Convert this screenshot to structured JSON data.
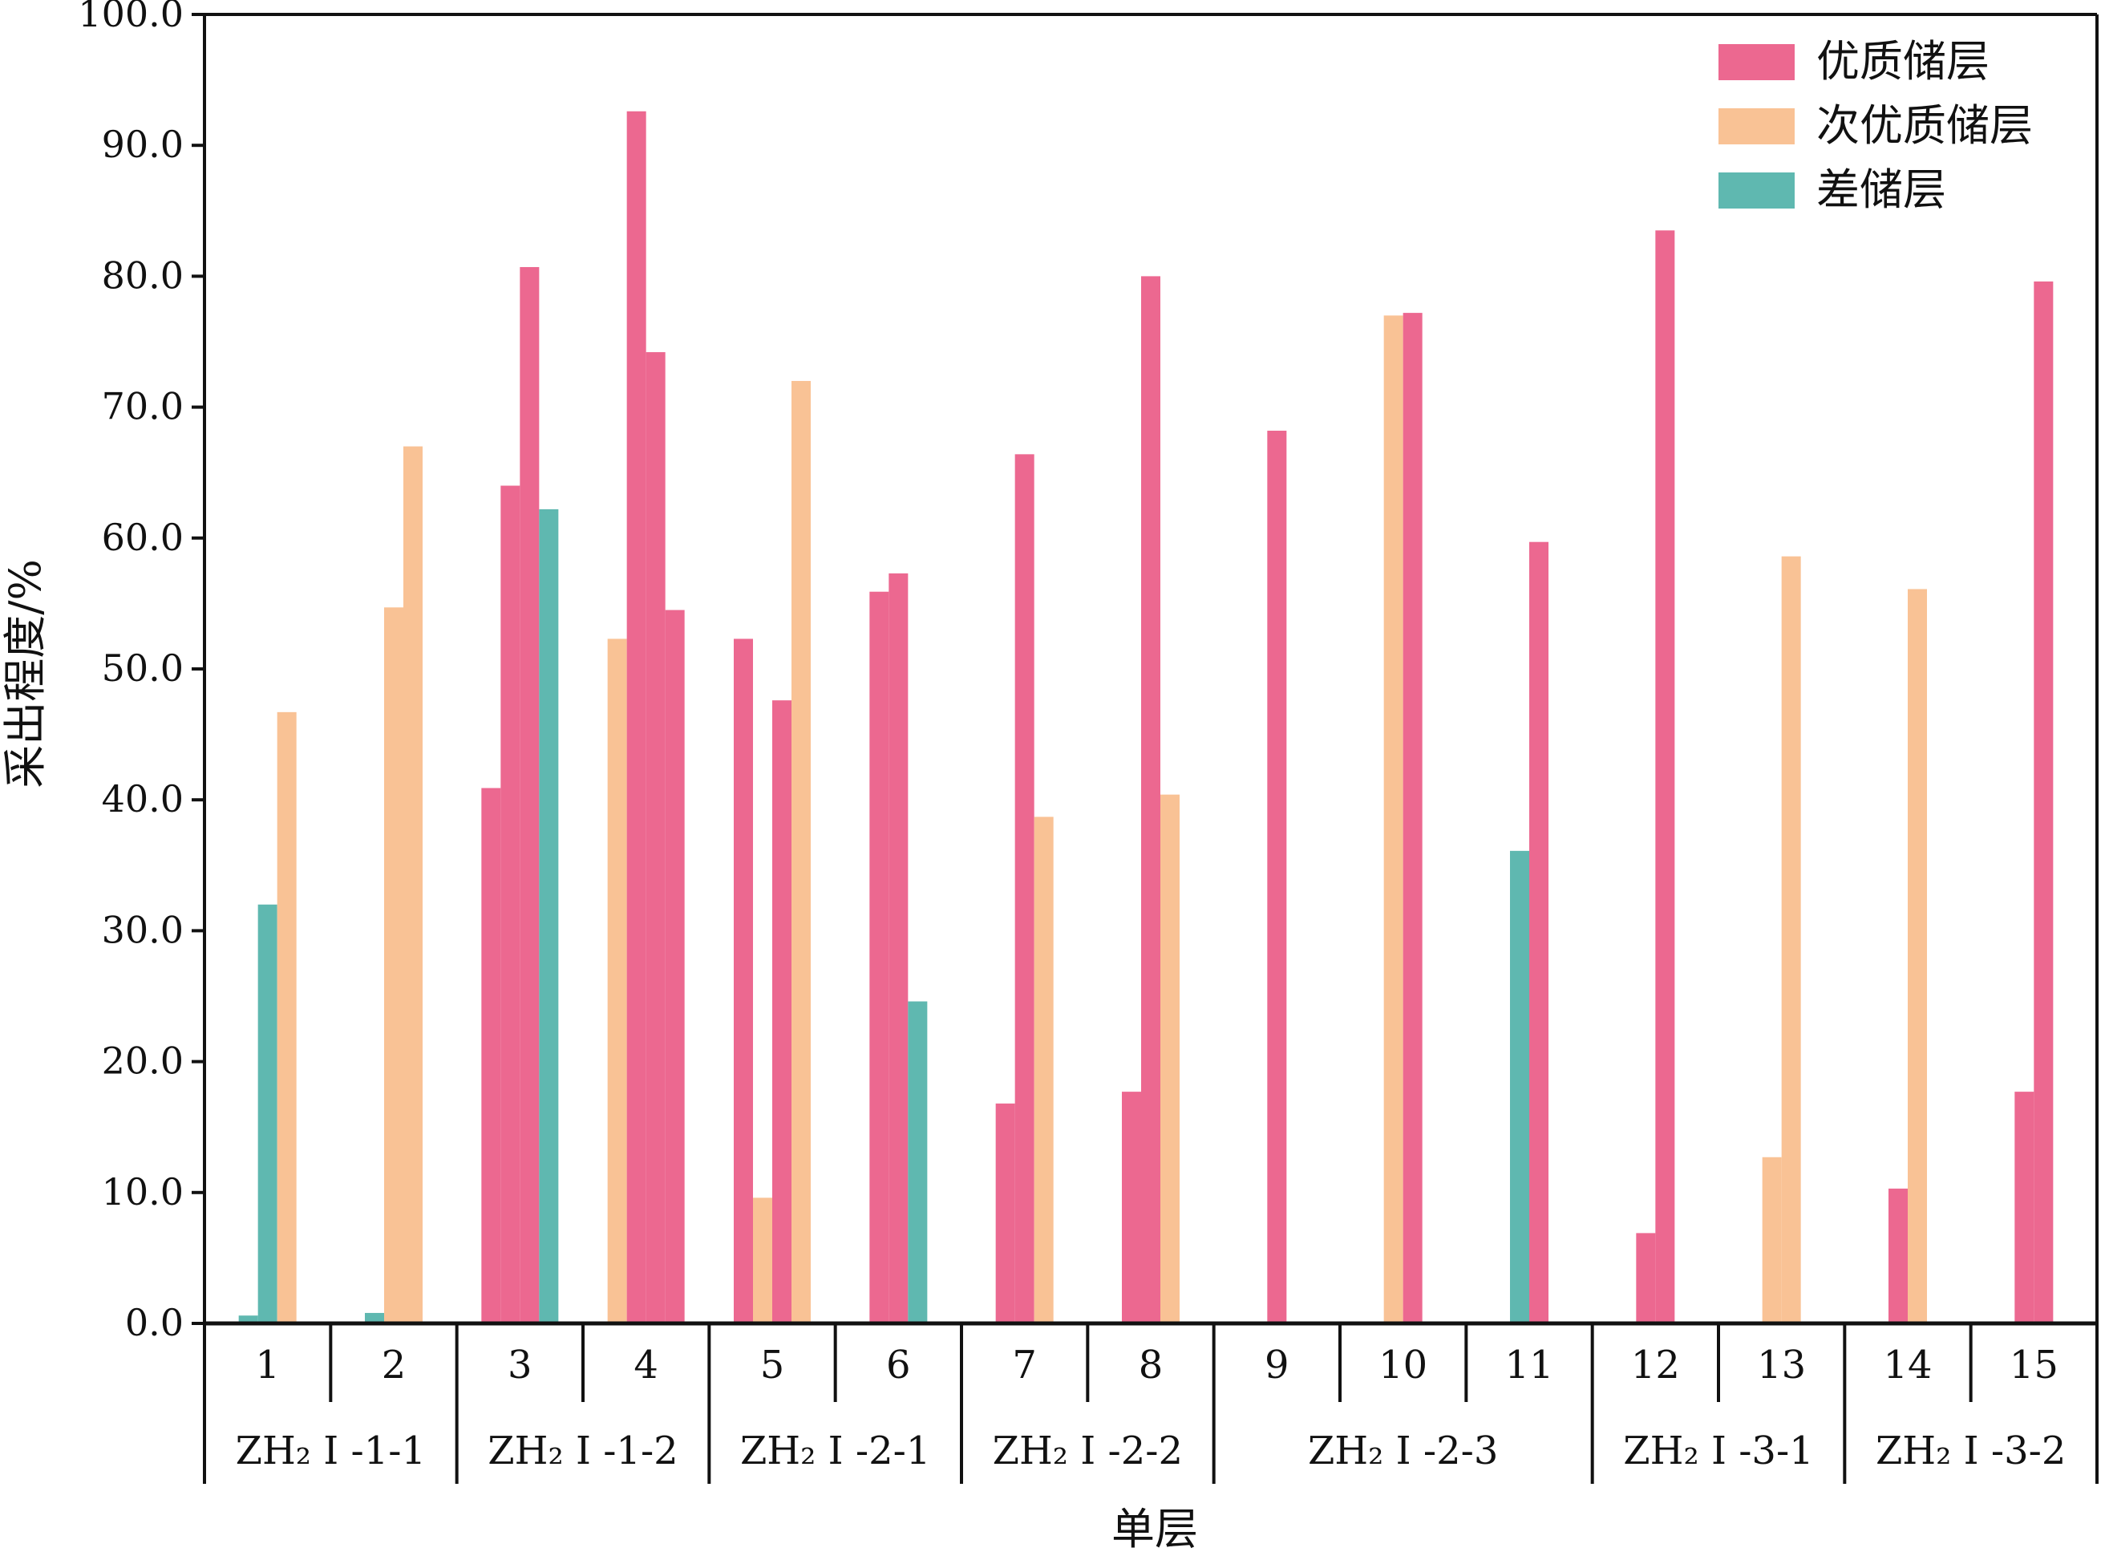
{
  "chart_data": {
    "type": "bar",
    "xlabel": "单层",
    "ylabel": "采出程度/%",
    "ylim": [
      0,
      100
    ],
    "yticks": [
      "0.0",
      "10.0",
      "20.0",
      "30.0",
      "40.0",
      "50.0",
      "60.0",
      "70.0",
      "80.0",
      "90.0",
      "100.0"
    ],
    "legend_position": "top-right",
    "series": [
      {
        "name": "优质储层",
        "color": "#ec6890"
      },
      {
        "name": "次优质储层",
        "color": "#f9c295"
      },
      {
        "name": "差储层",
        "color": "#5fb8b0"
      }
    ],
    "categories": [
      "1",
      "2",
      "3",
      "4",
      "5",
      "6",
      "7",
      "8",
      "9",
      "10",
      "11",
      "12",
      "13",
      "14",
      "15"
    ],
    "groups": [
      {
        "label": "ZH₂ Ⅰ -1-1",
        "categories": [
          "1",
          "2"
        ]
      },
      {
        "label": "ZH₂ Ⅰ -1-2",
        "categories": [
          "3",
          "4"
        ]
      },
      {
        "label": "ZH₂ Ⅰ -2-1",
        "categories": [
          "5",
          "6"
        ]
      },
      {
        "label": "ZH₂ Ⅰ -2-2",
        "categories": [
          "7",
          "8"
        ]
      },
      {
        "label": "ZH₂ Ⅰ -2-3",
        "categories": [
          "9",
          "10",
          "11"
        ]
      },
      {
        "label": "ZH₂ Ⅰ -3-1",
        "categories": [
          "12",
          "13"
        ]
      },
      {
        "label": "ZH₂ Ⅰ -3-2",
        "categories": [
          "14",
          "15"
        ]
      }
    ],
    "bars": [
      {
        "category": "1",
        "values": [
          {
            "series": "差储层",
            "value": 0.6
          },
          {
            "series": "差储层",
            "value": 32.0
          },
          {
            "series": "次优质储层",
            "value": 46.7
          }
        ]
      },
      {
        "category": "2",
        "values": [
          {
            "series": "差储层",
            "value": 0.8
          },
          {
            "series": "次优质储层",
            "value": 54.7
          },
          {
            "series": "次优质储层",
            "value": 67.0
          }
        ]
      },
      {
        "category": "3",
        "values": [
          {
            "series": "优质储层",
            "value": 40.9
          },
          {
            "series": "优质储层",
            "value": 64.0
          },
          {
            "series": "优质储层",
            "value": 80.7
          },
          {
            "series": "差储层",
            "value": 62.2
          }
        ]
      },
      {
        "category": "4",
        "values": [
          {
            "series": "次优质储层",
            "value": 52.3
          },
          {
            "series": "优质储层",
            "value": 92.6
          },
          {
            "series": "优质储层",
            "value": 74.2
          },
          {
            "series": "优质储层",
            "value": 54.5
          }
        ]
      },
      {
        "category": "5",
        "values": [
          {
            "series": "优质储层",
            "value": 52.3
          },
          {
            "series": "次优质储层",
            "value": 9.6
          },
          {
            "series": "优质储层",
            "value": 47.6
          },
          {
            "series": "次优质储层",
            "value": 72.0
          }
        ]
      },
      {
        "category": "6",
        "values": [
          {
            "series": "优质储层",
            "value": 55.9
          },
          {
            "series": "优质储层",
            "value": 57.3
          },
          {
            "series": "差储层",
            "value": 24.6
          }
        ]
      },
      {
        "category": "7",
        "values": [
          {
            "series": "优质储层",
            "value": 16.8
          },
          {
            "series": "优质储层",
            "value": 66.4
          },
          {
            "series": "次优质储层",
            "value": 38.7
          }
        ]
      },
      {
        "category": "8",
        "values": [
          {
            "series": "优质储层",
            "value": 17.7
          },
          {
            "series": "优质储层",
            "value": 80.0
          },
          {
            "series": "次优质储层",
            "value": 40.4
          }
        ]
      },
      {
        "category": "9",
        "values": [
          {
            "series": "优质储层",
            "value": 68.2
          }
        ]
      },
      {
        "category": "10",
        "values": [
          {
            "series": "次优质储层",
            "value": 77.0
          },
          {
            "series": "优质储层",
            "value": 77.2
          }
        ]
      },
      {
        "category": "11",
        "values": [
          {
            "series": "差储层",
            "value": 36.1
          },
          {
            "series": "优质储层",
            "value": 59.7
          }
        ]
      },
      {
        "category": "12",
        "values": [
          {
            "series": "优质储层",
            "value": 6.9
          },
          {
            "series": "优质储层",
            "value": 83.5
          }
        ]
      },
      {
        "category": "13",
        "values": [
          {
            "series": "次优质储层",
            "value": 12.7
          },
          {
            "series": "次优质储层",
            "value": 58.6
          }
        ]
      },
      {
        "category": "14",
        "values": [
          {
            "series": "优质储层",
            "value": 10.3
          },
          {
            "series": "次优质储层",
            "value": 56.1
          }
        ]
      },
      {
        "category": "15",
        "values": [
          {
            "series": "优质储层",
            "value": 17.7
          },
          {
            "series": "优质储层",
            "value": 79.6
          }
        ]
      }
    ]
  }
}
